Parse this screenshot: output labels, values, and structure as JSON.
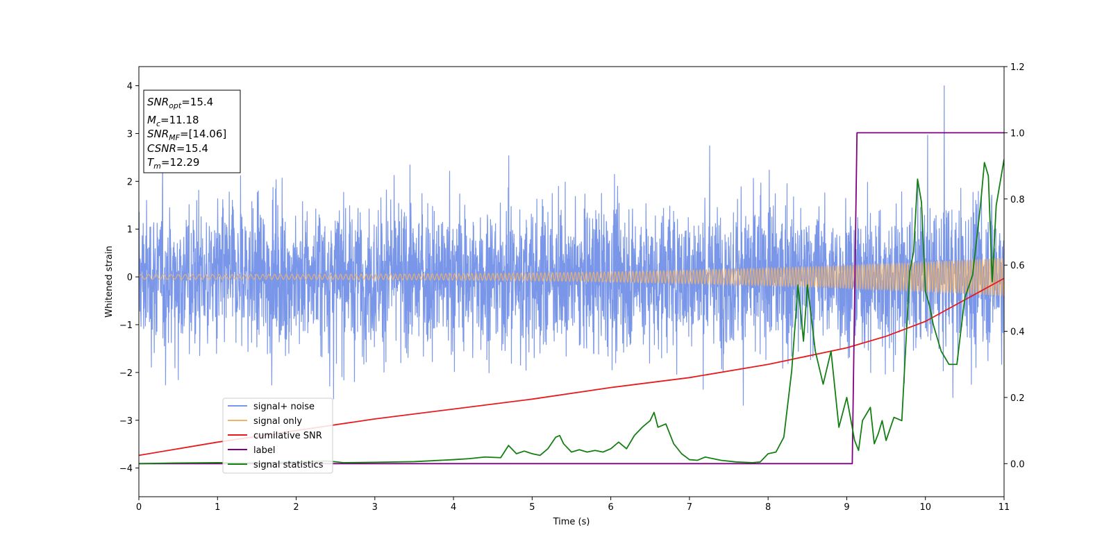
{
  "chart_data": {
    "type": "line",
    "xlabel": "Time (s)",
    "ylabel": "Whitened strain",
    "xlim": [
      0,
      11
    ],
    "ylim": [
      -4.6,
      4.4
    ],
    "y2lim": [
      -0.1,
      1.2
    ],
    "x_ticks": [
      "0",
      "1",
      "2",
      "3",
      "4",
      "5",
      "6",
      "7",
      "8",
      "9",
      "10",
      "11"
    ],
    "y_ticks": [
      "4",
      "3",
      "2",
      "1",
      "0",
      "−1",
      "−2",
      "−3",
      "−4"
    ],
    "y2_ticks": [
      "1.2",
      "1.0",
      "0.8",
      "0.6",
      "0.4",
      "0.2",
      "0.0"
    ],
    "grid": false,
    "legend_position": "lower-left",
    "info_box": {
      "lines": [
        {
          "name": "SNR",
          "sub": "opt",
          "value": "=15.4"
        },
        {
          "name": "M",
          "sub": "c",
          "value": "=11.18"
        },
        {
          "name": "SNR",
          "sub": "MF",
          "value": "=[14.06]"
        },
        {
          "name": "CSNR",
          "sub": "",
          "value": "=15.4"
        },
        {
          "name": "T",
          "sub": "m",
          "value": "=12.29"
        }
      ]
    },
    "series": [
      {
        "name": "signal+ noise",
        "axis": "left",
        "color": "#7a96e8",
        "kind": "noise",
        "typical_range": [
          -2.5,
          2.5
        ],
        "extreme_range": [
          -4.1,
          4.0
        ]
      },
      {
        "name": "signal only",
        "axis": "left",
        "color": "#f0b36a",
        "kind": "chirp",
        "amplitude_start": 0.05,
        "amplitude_end": 0.4
      },
      {
        "name": "cumilative SNR",
        "axis": "right",
        "color": "#e8191b",
        "x": [
          0,
          1,
          2,
          3,
          4,
          5,
          6,
          7,
          8,
          8.5,
          9,
          9.5,
          10,
          10.5,
          11
        ],
        "values": [
          0.025,
          0.065,
          0.1,
          0.135,
          0.165,
          0.195,
          0.23,
          0.26,
          0.3,
          0.325,
          0.35,
          0.385,
          0.43,
          0.495,
          0.56
        ]
      },
      {
        "name": "label",
        "axis": "right",
        "color": "#800080",
        "x": [
          0,
          9.07,
          9.13,
          11
        ],
        "values": [
          0.0,
          0.0,
          1.0,
          1.0
        ]
      },
      {
        "name": "signal statistics",
        "axis": "right",
        "color": "#137f13",
        "x": [
          0,
          0.5,
          1,
          1.5,
          2,
          2.4,
          2.6,
          3,
          3.5,
          4,
          4.2,
          4.4,
          4.6,
          4.7,
          4.8,
          4.9,
          5.0,
          5.1,
          5.2,
          5.3,
          5.35,
          5.4,
          5.5,
          5.6,
          5.7,
          5.8,
          5.9,
          6.0,
          6.1,
          6.2,
          6.3,
          6.4,
          6.5,
          6.55,
          6.6,
          6.7,
          6.8,
          6.9,
          7.0,
          7.1,
          7.2,
          7.4,
          7.6,
          7.8,
          7.9,
          8.0,
          8.1,
          8.2,
          8.3,
          8.38,
          8.45,
          8.5,
          8.6,
          8.7,
          8.8,
          8.9,
          9.0,
          9.1,
          9.15,
          9.2,
          9.3,
          9.35,
          9.4,
          9.45,
          9.5,
          9.6,
          9.7,
          9.8,
          9.85,
          9.9,
          9.95,
          10.0,
          10.05,
          10.1,
          10.2,
          10.3,
          10.4,
          10.5,
          10.6,
          10.7,
          10.75,
          10.8,
          10.85,
          10.9,
          11.0
        ],
        "values": [
          0.0,
          0.002,
          0.003,
          0.002,
          0.005,
          0.008,
          0.003,
          0.004,
          0.006,
          0.012,
          0.015,
          0.02,
          0.018,
          0.055,
          0.03,
          0.038,
          0.03,
          0.025,
          0.045,
          0.08,
          0.085,
          0.06,
          0.035,
          0.042,
          0.035,
          0.04,
          0.035,
          0.045,
          0.065,
          0.045,
          0.085,
          0.11,
          0.13,
          0.155,
          0.11,
          0.12,
          0.06,
          0.03,
          0.012,
          0.01,
          0.02,
          0.01,
          0.005,
          0.003,
          0.005,
          0.03,
          0.035,
          0.08,
          0.28,
          0.54,
          0.37,
          0.54,
          0.34,
          0.24,
          0.34,
          0.11,
          0.2,
          0.07,
          0.04,
          0.13,
          0.17,
          0.06,
          0.09,
          0.13,
          0.07,
          0.14,
          0.13,
          0.58,
          0.64,
          0.86,
          0.79,
          0.52,
          0.48,
          0.42,
          0.34,
          0.3,
          0.3,
          0.5,
          0.57,
          0.78,
          0.91,
          0.87,
          0.55,
          0.78,
          0.92
        ]
      }
    ]
  }
}
